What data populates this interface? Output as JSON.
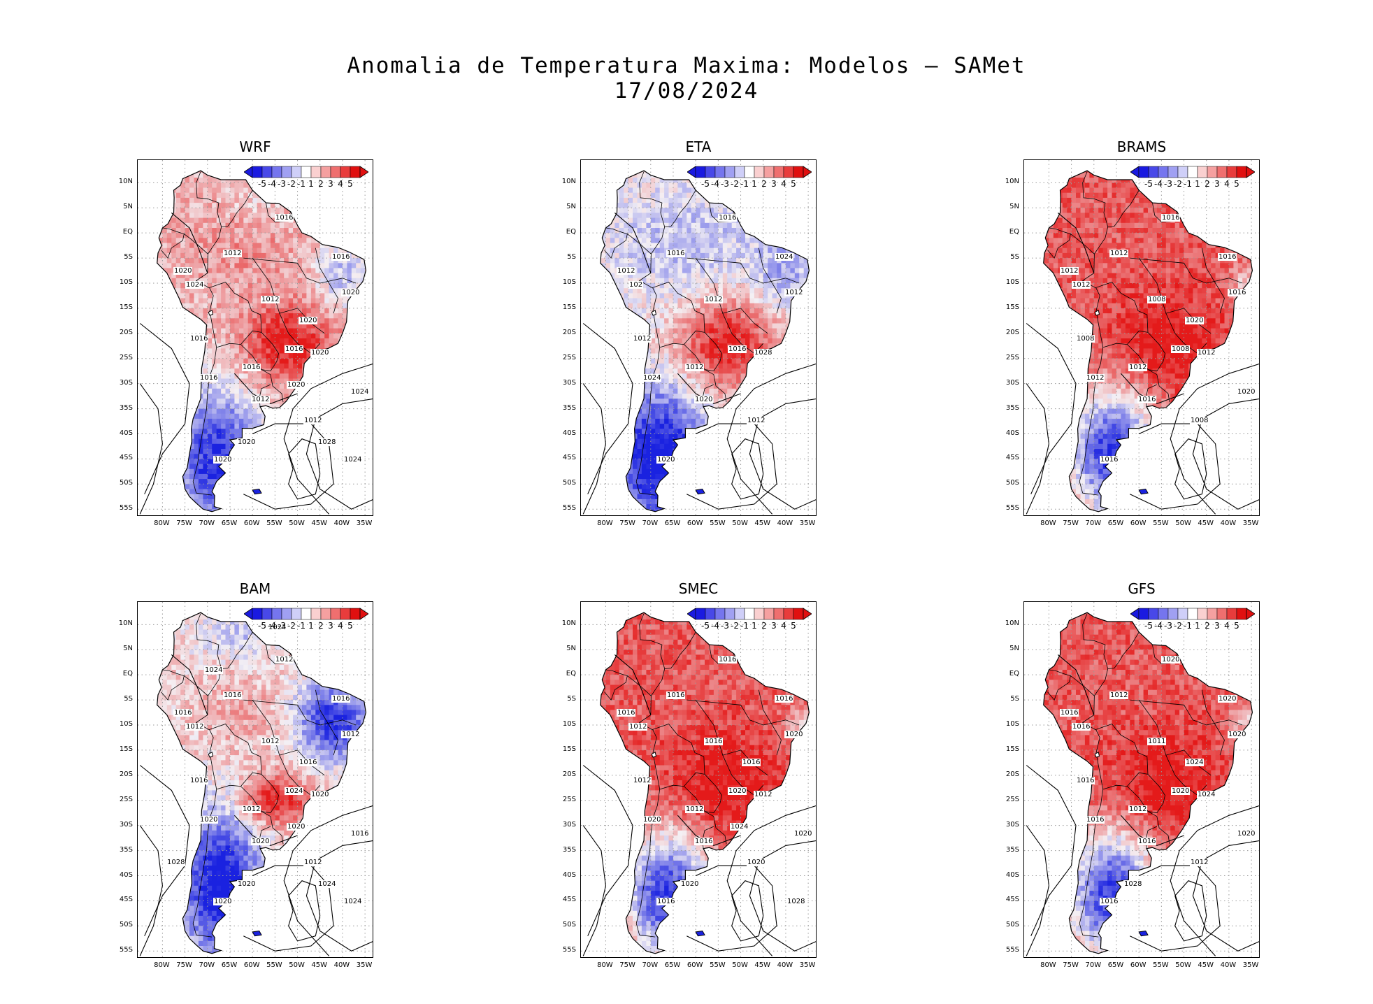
{
  "figure": {
    "title_line1": "Anomalia de Temperatura Maxima: Modelos — SAMet",
    "title_line2": "17/08/2024"
  },
  "axes": {
    "lat_labels": [
      "10N",
      "5N",
      "EQ",
      "5S",
      "10S",
      "15S",
      "20S",
      "25S",
      "30S",
      "35S",
      "40S",
      "45S",
      "50S",
      "55S"
    ],
    "lon_labels": [
      "80W",
      "75W",
      "70W",
      "65W",
      "60W",
      "55W",
      "50W",
      "45W",
      "40W",
      "35W"
    ]
  },
  "colorbar": {
    "labels": [
      "-5",
      "-4",
      "-3",
      "-2",
      "-1",
      "1",
      "2",
      "3",
      "4",
      "5"
    ],
    "colors": [
      "#1a1ae0",
      "#4848e8",
      "#7575ee",
      "#a0a0f2",
      "#cfcff8",
      "#ffffff",
      "#fad0d0",
      "#f5a0a0",
      "#ef6f6f",
      "#e83c3c",
      "#e01010"
    ]
  },
  "colors": {
    "warm": "#e41a1a",
    "cold": "#1a22e0",
    "land_neutral": "#f4f0f4"
  },
  "chart_data": {
    "type": "heatmap",
    "title": "Anomalia de Temperatura Maxima: Modelos — SAMet",
    "date": "17/08/2024",
    "panels": [
      {
        "name": "WRF",
        "pattern": "mixed",
        "isobars": [
          "1012",
          "1016",
          "1016",
          "1020",
          "1012",
          "1012",
          "1024",
          "1020",
          "1016",
          "1020",
          "1016",
          "1012",
          "1016",
          "1020",
          "1016",
          "1020",
          "1024",
          "1020",
          "1020",
          "1024",
          "1028"
        ]
      },
      {
        "name": "ETA",
        "pattern": "cool_north",
        "isobars": [
          "1012",
          "1012",
          "1012",
          "1012",
          "1012",
          "1016",
          "102",
          "1020",
          "1016",
          "1012",
          "1016",
          "1020",
          "1024",
          "1028",
          "1024"
        ]
      },
      {
        "name": "BRAMS",
        "pattern": "warm",
        "isobars": [
          "1008",
          "1008",
          "1012",
          "1016",
          "1008",
          "1012",
          "1012",
          "1016",
          "1008",
          "1012",
          "1016",
          "1016",
          "1012",
          "1012",
          "1016",
          "1020",
          "1020"
        ]
      },
      {
        "name": "BAM",
        "pattern": "cool_east",
        "isobars": [
          "1012",
          "1016",
          "1012",
          "1012",
          "1012",
          "1016",
          "1012",
          "1020",
          "1024",
          "1016",
          "1012",
          "1020",
          "1020",
          "1020",
          "1016",
          "1016",
          "1016",
          "1020",
          "1020",
          "1024",
          "1024",
          "1024",
          "1028",
          "1024"
        ]
      },
      {
        "name": "SMEC",
        "pattern": "warm",
        "isobars": [
          "1016",
          "1012",
          "1012",
          "1020",
          "1020",
          "1016",
          "1012",
          "1016",
          "1020",
          "1016",
          "1016",
          "1016",
          "1020",
          "1012",
          "1016",
          "1016",
          "1020",
          "1020",
          "1024",
          "1028"
        ]
      },
      {
        "name": "GFS",
        "pattern": "warm",
        "isobars": [
          "1011",
          "1016",
          "1012",
          "1020",
          "1012",
          "1012",
          "1016",
          "1016",
          "1020",
          "1016",
          "1020",
          "1016",
          "1016",
          "1024",
          "1020",
          "1024",
          "1020",
          "1028"
        ]
      }
    ]
  }
}
